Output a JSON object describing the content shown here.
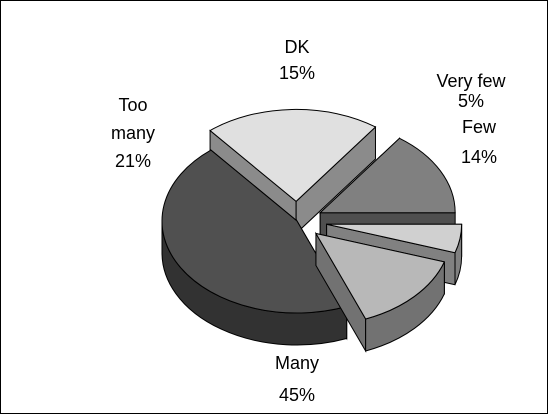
{
  "chart_data": {
    "type": "pie",
    "style": "3d-exploded",
    "slices": [
      {
        "label": "DK",
        "value": 15,
        "value_text": "15%",
        "color": "#808080"
      },
      {
        "label": "Very few",
        "value": 5,
        "value_text": "5%",
        "color": "#d0d0d0"
      },
      {
        "label": "Few",
        "value": 14,
        "value_text": "14%",
        "color": "#b8b8b8"
      },
      {
        "label": "Many",
        "value": 45,
        "value_text": "45%",
        "color": "#505050"
      },
      {
        "label": "Too many",
        "value": 21,
        "value_text": "21%",
        "color": "#e0e0e0"
      }
    ],
    "legend": "none"
  }
}
